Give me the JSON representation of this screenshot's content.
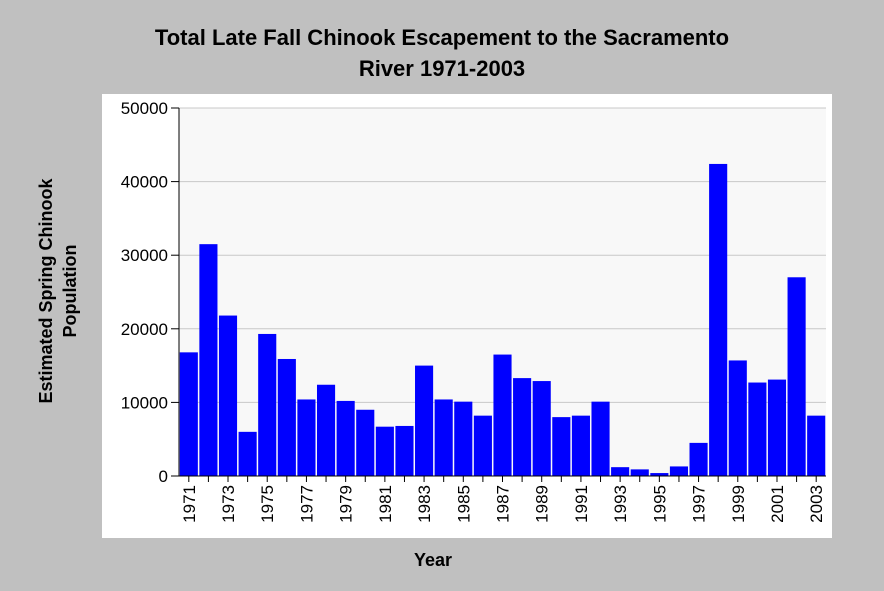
{
  "chart_data": {
    "type": "bar",
    "title_line1": "Total Late Fall Chinook Escapement to the Sacramento",
    "title_line2": "River 1971-2003",
    "xlabel": "Year",
    "ylabel_line1": "Estimated Spring Chinook",
    "ylabel_line2": "Population",
    "ylim": [
      0,
      50000
    ],
    "yticks": [
      "0",
      "10000",
      "20000",
      "30000",
      "40000",
      "50000"
    ],
    "grid": true,
    "bar_color": "#0000ff",
    "categories": [
      "1971",
      "1972",
      "1973",
      "1974",
      "1975",
      "1976",
      "1977",
      "1978",
      "1979",
      "1980",
      "1981",
      "1982",
      "1983",
      "1984",
      "1985",
      "1986",
      "1987",
      "1988",
      "1989",
      "1990",
      "1991",
      "1992",
      "1993",
      "1994",
      "1995",
      "1996",
      "1997",
      "1998",
      "1999",
      "2000",
      "2001",
      "2002",
      "2003"
    ],
    "xtick_labels": [
      "1971",
      "1973",
      "1975",
      "1977",
      "1979",
      "1981",
      "1983",
      "1985",
      "1987",
      "1989",
      "1991",
      "1993",
      "1995",
      "1997",
      "1999",
      "2001",
      "2003"
    ],
    "values": [
      16800,
      31500,
      21800,
      6000,
      19300,
      15900,
      10400,
      12400,
      10200,
      9000,
      6700,
      6800,
      15000,
      10400,
      10100,
      8200,
      16500,
      13300,
      12900,
      8000,
      8200,
      10100,
      1200,
      900,
      400,
      1300,
      4500,
      42400,
      15700,
      12700,
      13100,
      27000,
      8200
    ]
  }
}
